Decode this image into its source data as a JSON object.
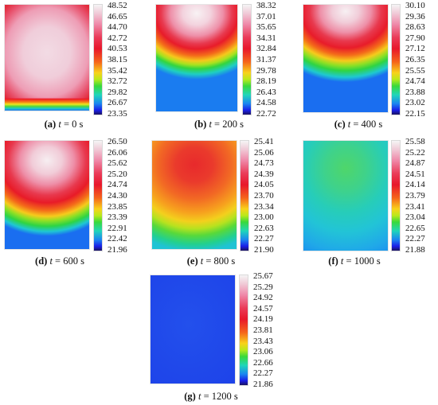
{
  "panels": [
    {
      "caption": {
        "letter": "(a)",
        "var": "t",
        "rest": " = 0 s"
      },
      "colorbar_ticks": [
        "48.52",
        "46.65",
        "44.70",
        "42.72",
        "40.53",
        "38.15",
        "35.42",
        "32.72",
        "29.82",
        "26.67",
        "23.35"
      ]
    },
    {
      "caption": {
        "letter": "(b)",
        "var": "t",
        "rest": " = 200 s"
      },
      "colorbar_ticks": [
        "38.32",
        "37.01",
        "35.65",
        "34.31",
        "32.84",
        "31.37",
        "29.78",
        "28.19",
        "26.43",
        "24.58",
        "22.72"
      ]
    },
    {
      "caption": {
        "letter": "(c)",
        "var": "t",
        "rest": " = 400 s"
      },
      "colorbar_ticks": [
        "30.10",
        "29.36",
        "28.63",
        "27.90",
        "27.12",
        "26.35",
        "25.55",
        "24.74",
        "23.88",
        "23.02",
        "22.15"
      ]
    },
    {
      "caption": {
        "letter": "(d)",
        "var": "t",
        "rest": " = 600 s"
      },
      "colorbar_ticks": [
        "26.50",
        "26.06",
        "25.62",
        "25.20",
        "24.74",
        "24.30",
        "23.85",
        "23.39",
        "22.91",
        "22.42",
        "21.96"
      ]
    },
    {
      "caption": {
        "letter": "(e)",
        "var": "t",
        "rest": " = 800 s"
      },
      "colorbar_ticks": [
        "25.41",
        "25.06",
        "24.73",
        "24.39",
        "24.05",
        "23.70",
        "23.34",
        "23.00",
        "22.63",
        "22.27",
        "21.90"
      ]
    },
    {
      "caption": {
        "letter": "(f)",
        "var": "t",
        "rest": " = 1000 s"
      },
      "colorbar_ticks": [
        "25.58",
        "25.22",
        "24.87",
        "24.51",
        "24.14",
        "23.79",
        "23.41",
        "23.04",
        "22.65",
        "22.27",
        "21.88"
      ]
    },
    {
      "caption": {
        "letter": "(g)",
        "var": "t",
        "rest": " = 1200 s"
      },
      "colorbar_ticks": [
        "25.67",
        "25.29",
        "24.92",
        "24.57",
        "24.19",
        "23.81",
        "23.43",
        "23.06",
        "22.66",
        "22.27",
        "21.86"
      ]
    }
  ]
}
